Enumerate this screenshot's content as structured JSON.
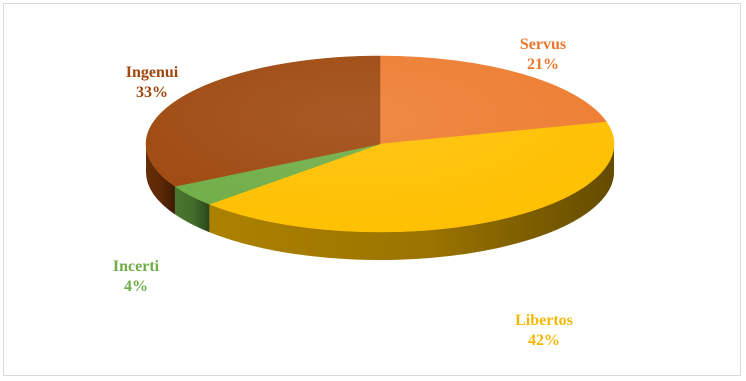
{
  "chart_data": {
    "type": "pie",
    "style": "3d",
    "title": "",
    "slices": [
      {
        "name": "Servus",
        "value": 21,
        "label": "21%",
        "color": "#ED7D31",
        "side_color": "#B4571C",
        "label_color": "#E8762D"
      },
      {
        "name": "Libertos",
        "value": 42,
        "label": "42%",
        "color": "#FFC000",
        "side_color": "#B58800",
        "label_color": "#F5B800"
      },
      {
        "name": "Incerti",
        "value": 4,
        "label": "4%",
        "color": "#70AD47",
        "side_color": "#4E7E31",
        "label_color": "#70AD47"
      },
      {
        "name": "Ingenui",
        "value": 33,
        "label": "33%",
        "color": "#9E480E",
        "side_color": "#6B2F07",
        "label_color": "#9E480E"
      }
    ]
  }
}
